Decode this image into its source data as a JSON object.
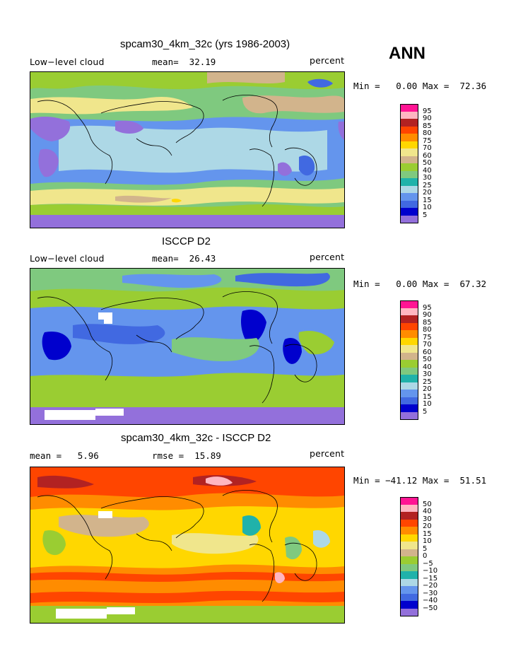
{
  "season": "ANN",
  "panels": [
    {
      "title": "spcam30_4km_32c (yrs 1986-2003)",
      "left_text": "Low−level cloud",
      "mid_text": "mean=  32.19",
      "units": "percent",
      "stats": "Min =   0.00 Max =  72.36",
      "colorbar_labels": [
        "95",
        "90",
        "85",
        "80",
        "75",
        "70",
        "60",
        "50",
        "40",
        "30",
        "25",
        "20",
        "15",
        "10",
        "5"
      ],
      "colorbar_colors": [
        "#ff1493",
        "#ffb6c1",
        "#b22222",
        "#ff4500",
        "#ff8c00",
        "#ffd700",
        "#f0e68c",
        "#d2b48c",
        "#9acd32",
        "#7fc97f",
        "#20b2aa",
        "#add8e6",
        "#6495ed",
        "#4169e1",
        "#0000cd",
        "#9370db"
      ]
    },
    {
      "title": "ISCCP D2",
      "left_text": "Low−level cloud",
      "mid_text": "mean=  26.43",
      "units": "percent",
      "stats": "Min =   0.00 Max =  67.32",
      "colorbar_labels": [
        "95",
        "90",
        "85",
        "80",
        "75",
        "70",
        "60",
        "50",
        "40",
        "30",
        "25",
        "20",
        "15",
        "10",
        "5"
      ],
      "colorbar_colors": [
        "#ff1493",
        "#ffb6c1",
        "#b22222",
        "#ff4500",
        "#ff8c00",
        "#ffd700",
        "#f0e68c",
        "#d2b48c",
        "#9acd32",
        "#7fc97f",
        "#20b2aa",
        "#add8e6",
        "#6495ed",
        "#4169e1",
        "#0000cd",
        "#9370db"
      ]
    },
    {
      "title": "spcam30_4km_32c - ISCCP D2",
      "left_text": "mean =   5.96",
      "mid_text": "rmse =  15.89",
      "units": "percent",
      "stats": "Min = −41.12 Max =  51.51",
      "colorbar_labels": [
        "50",
        "40",
        "30",
        "20",
        "15",
        "10",
        "5",
        "0",
        "−5",
        "−10",
        "−15",
        "−20",
        "−30",
        "−40",
        "−50"
      ],
      "colorbar_colors": [
        "#ff1493",
        "#ffb6c1",
        "#b22222",
        "#ff4500",
        "#ff8c00",
        "#ffd700",
        "#f0e68c",
        "#d2b48c",
        "#9acd32",
        "#7fc97f",
        "#20b2aa",
        "#add8e6",
        "#6495ed",
        "#4169e1",
        "#0000cd",
        "#9370db"
      ]
    }
  ]
}
